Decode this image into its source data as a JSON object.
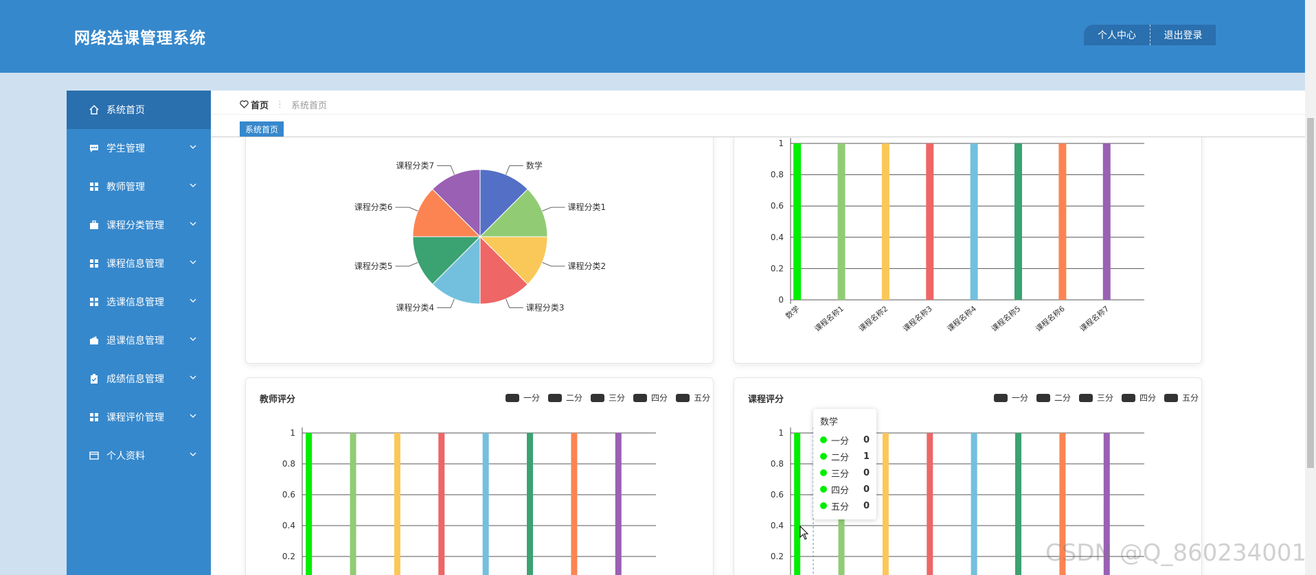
{
  "header": {
    "app_title": "网络选课管理系统",
    "personal_center": "个人中心",
    "logout": "退出登录"
  },
  "colors": {
    "header_bg": "#3688cc",
    "sidebar_active": "#2a6fae",
    "bar_palette": [
      "#00ee00",
      "#91cc75",
      "#fac858",
      "#ee6666",
      "#73c0de",
      "#3ba272",
      "#fc8452",
      "#9a60b4"
    ]
  },
  "sidebar": {
    "items": [
      {
        "label": "系统首页",
        "icon": "home-icon",
        "active": true
      },
      {
        "label": "学生管理",
        "icon": "chat-icon"
      },
      {
        "label": "教师管理",
        "icon": "grid-icon"
      },
      {
        "label": "课程分类管理",
        "icon": "briefcase-icon"
      },
      {
        "label": "课程信息管理",
        "icon": "grid-icon"
      },
      {
        "label": "选课信息管理",
        "icon": "grid-icon"
      },
      {
        "label": "退课信息管理",
        "icon": "wallet-icon"
      },
      {
        "label": "成绩信息管理",
        "icon": "clipboard-icon"
      },
      {
        "label": "课程评价管理",
        "icon": "grid-icon"
      },
      {
        "label": "个人资料",
        "icon": "card-icon"
      }
    ]
  },
  "breadcrumb": {
    "home": "首页",
    "separator": "⋮",
    "current": "系统首页"
  },
  "tabs": [
    {
      "label": "系统首页",
      "active": true
    }
  ],
  "watermark": "CSDN @Q_860234001",
  "chart_data": [
    {
      "type": "pie",
      "slices": [
        {
          "label": "数学",
          "value": 1,
          "color": "#5470c6"
        },
        {
          "label": "课程分类1",
          "value": 1,
          "color": "#91cc75"
        },
        {
          "label": "课程分类2",
          "value": 1,
          "color": "#fac858"
        },
        {
          "label": "课程分类3",
          "value": 1,
          "color": "#ee6666"
        },
        {
          "label": "课程分类4",
          "value": 1,
          "color": "#73c0de"
        },
        {
          "label": "课程分类5",
          "value": 1,
          "color": "#3ba272"
        },
        {
          "label": "课程分类6",
          "value": 1,
          "color": "#fc8452"
        },
        {
          "label": "课程分类7",
          "value": 1,
          "color": "#9a60b4"
        }
      ]
    },
    {
      "type": "bar",
      "categories": [
        "数学",
        "课程名称1",
        "课程名称2",
        "课程名称3",
        "课程名称4",
        "课程名称5",
        "课程名称6",
        "课程名称7"
      ],
      "values": [
        1,
        1,
        1,
        1,
        1,
        1,
        1,
        1
      ],
      "yticks": [
        "0",
        "0.2",
        "0.4",
        "0.6",
        "0.8",
        "1"
      ],
      "ylim": [
        0,
        1
      ]
    },
    {
      "type": "bar",
      "title": "教师评分",
      "legend": [
        "一分",
        "二分",
        "三分",
        "四分",
        "五分"
      ],
      "legend_position": "top-right",
      "values": [
        1,
        1,
        1,
        1,
        1,
        1,
        1,
        1
      ],
      "yticks": [
        "0.2",
        "0.4",
        "0.6",
        "0.8",
        "1"
      ],
      "ylim": [
        0,
        1
      ]
    },
    {
      "type": "bar",
      "title": "课程评分",
      "legend": [
        "一分",
        "二分",
        "三分",
        "四分",
        "五分"
      ],
      "legend_position": "top-right",
      "values": [
        1,
        1,
        1,
        1,
        1,
        1,
        1,
        1
      ],
      "yticks": [
        "0.2",
        "0.4",
        "0.6",
        "0.8",
        "1"
      ],
      "ylim": [
        0,
        1
      ],
      "tooltip": {
        "title": "数学",
        "rows": [
          {
            "name": "一分",
            "value": "0"
          },
          {
            "name": "二分",
            "value": "1"
          },
          {
            "name": "三分",
            "value": "0"
          },
          {
            "name": "四分",
            "value": "0"
          },
          {
            "name": "五分",
            "value": "0"
          }
        ]
      }
    }
  ]
}
